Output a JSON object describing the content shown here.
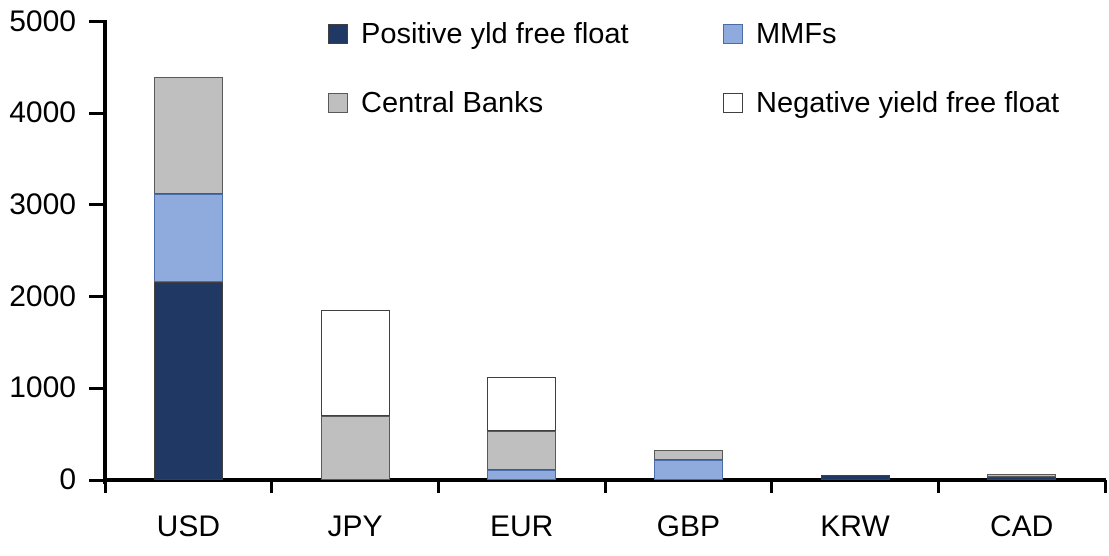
{
  "chart_data": {
    "type": "bar",
    "stacked": true,
    "title": "",
    "xlabel": "",
    "ylabel": "",
    "categories": [
      "USD",
      "JPY",
      "EUR",
      "GBP",
      "KRW",
      "CAD"
    ],
    "series": [
      {
        "name": "Positive yld free float",
        "color": "#1f3864",
        "border": "#404040",
        "values": [
          2160,
          0,
          0,
          0,
          50,
          35
        ]
      },
      {
        "name": "MMFs",
        "color": "#8faadc",
        "border": "#4a6da7",
        "values": [
          960,
          0,
          110,
          220,
          0,
          0
        ]
      },
      {
        "name": "Central Banks",
        "color": "#bfbfbf",
        "border": "#595959",
        "values": [
          1270,
          700,
          425,
          110,
          0,
          30
        ]
      },
      {
        "name": "Negative yield free float",
        "color": "#ffffff",
        "border": "#404040",
        "values": [
          0,
          1150,
          585,
          0,
          0,
          0
        ]
      }
    ],
    "totals": [
      4390,
      1850,
      1120,
      330,
      50,
      65
    ],
    "ylim": [
      0,
      5000
    ],
    "yticks": [
      0,
      1000,
      2000,
      3000,
      4000,
      5000
    ],
    "grid": false,
    "legend_position": "top",
    "legend_columns": 2,
    "axis_color": "#000000"
  }
}
